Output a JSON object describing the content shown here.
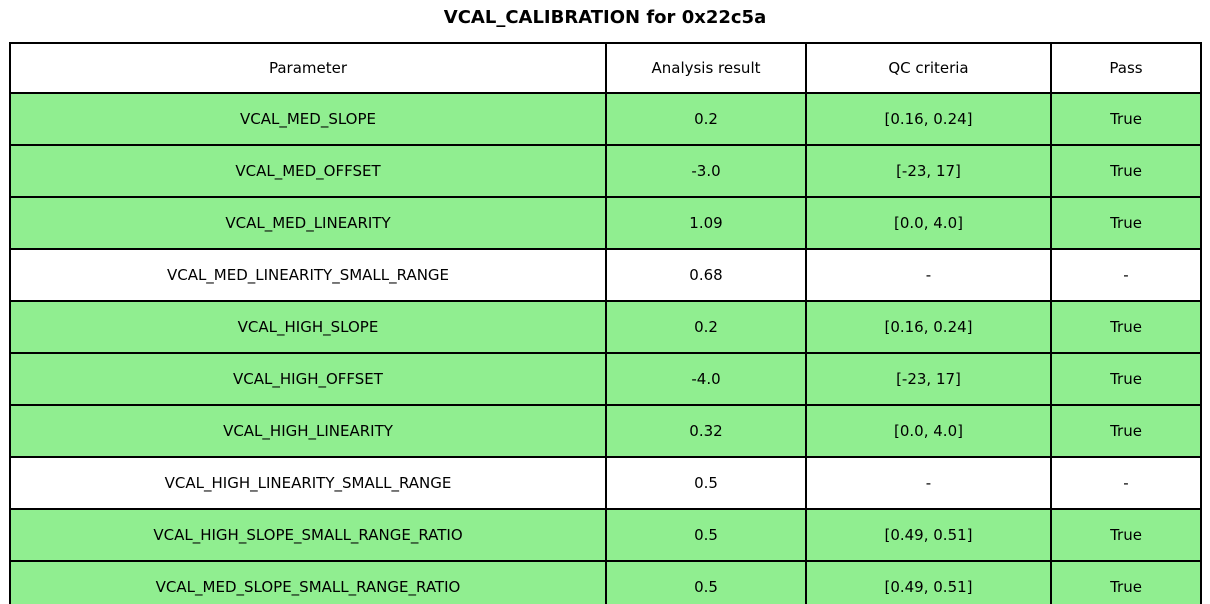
{
  "chart_data": {
    "type": "table",
    "title": "VCAL_CALIBRATION for 0x22c5a",
    "columns": [
      "Parameter",
      "Analysis result",
      "QC criteria",
      "Pass"
    ],
    "rows": [
      {
        "parameter": "VCAL_MED_SLOPE",
        "analysis_result": "0.2",
        "qc_criteria": "[0.16, 0.24]",
        "pass": "True",
        "pass_highlight": true
      },
      {
        "parameter": "VCAL_MED_OFFSET",
        "analysis_result": "-3.0",
        "qc_criteria": "[-23, 17]",
        "pass": "True",
        "pass_highlight": true
      },
      {
        "parameter": "VCAL_MED_LINEARITY",
        "analysis_result": "1.09",
        "qc_criteria": "[0.0, 4.0]",
        "pass": "True",
        "pass_highlight": true
      },
      {
        "parameter": "VCAL_MED_LINEARITY_SMALL_RANGE",
        "analysis_result": "0.68",
        "qc_criteria": "-",
        "pass": "-",
        "pass_highlight": false
      },
      {
        "parameter": "VCAL_HIGH_SLOPE",
        "analysis_result": "0.2",
        "qc_criteria": "[0.16, 0.24]",
        "pass": "True",
        "pass_highlight": true
      },
      {
        "parameter": "VCAL_HIGH_OFFSET",
        "analysis_result": "-4.0",
        "qc_criteria": "[-23, 17]",
        "pass": "True",
        "pass_highlight": true
      },
      {
        "parameter": "VCAL_HIGH_LINEARITY",
        "analysis_result": "0.32",
        "qc_criteria": "[0.0, 4.0]",
        "pass": "True",
        "pass_highlight": true
      },
      {
        "parameter": "VCAL_HIGH_LINEARITY_SMALL_RANGE",
        "analysis_result": "0.5",
        "qc_criteria": "-",
        "pass": "-",
        "pass_highlight": false
      },
      {
        "parameter": "VCAL_HIGH_SLOPE_SMALL_RANGE_RATIO",
        "analysis_result": "0.5",
        "qc_criteria": "[0.49, 0.51]",
        "pass": "True",
        "pass_highlight": true
      },
      {
        "parameter": "VCAL_MED_SLOPE_SMALL_RANGE_RATIO",
        "analysis_result": "0.5",
        "qc_criteria": "[0.49, 0.51]",
        "pass": "True",
        "pass_highlight": true
      }
    ],
    "colors": {
      "pass_row_bg": "#90ee90",
      "default_row_bg": "#ffffff",
      "border": "#000000",
      "text": "#000000"
    },
    "layout": {
      "column_width_fractions": [
        0.5,
        0.168,
        0.206,
        0.126
      ],
      "grid": "all-cell-borders",
      "header_bg": "#ffffff"
    }
  }
}
